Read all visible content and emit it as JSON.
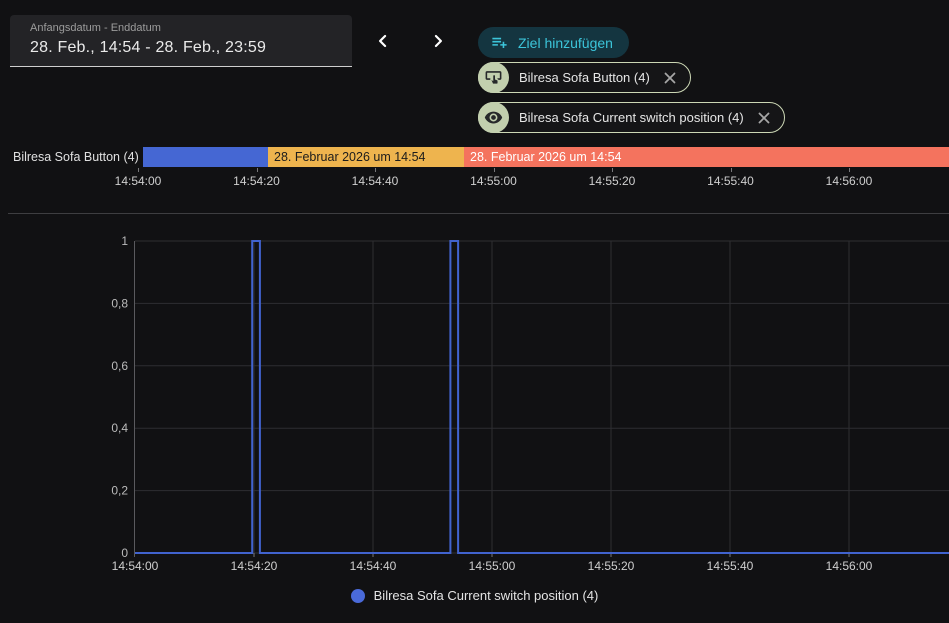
{
  "colors": {
    "page_bg": "#111113",
    "accent_cyan": "#3cc5da",
    "add_button_bg": "#143540",
    "chip_border": "#ccd7b5",
    "chip_avatar_bg": "#c2cfae",
    "segment_blue": "#4567d3",
    "segment_amber": "#eeb44e",
    "segment_red": "#f4735e",
    "line_blue": "#4163cf",
    "legend_dot": "#4a6ad9"
  },
  "date_range_picker": {
    "label": "Anfangsdatum - Enddatum",
    "value": "28. Feb., 14:54 - 28. Feb., 23:59"
  },
  "toolbar": {
    "add_target_label": "Ziel hinzufügen",
    "chips": [
      {
        "icon": "gesture-tap-button-icon",
        "label": "Bilresa Sofa Button (4)"
      },
      {
        "icon": "eye-icon",
        "label": "Bilresa Sofa Current switch position (4)"
      }
    ]
  },
  "timeline": {
    "entity_label": "Bilresa Sofa Button (4)",
    "segments": [
      {
        "label": "",
        "color_key": "segment_blue",
        "width_pct": 15.51,
        "text_color": "#ffffff"
      },
      {
        "label": "28. Februar 2026 um 14:54",
        "color_key": "segment_amber",
        "width_pct": 24.32,
        "text_color": "#1c1c1c"
      },
      {
        "label": "28. Februar 2026 um 14:54",
        "color_key": "segment_red",
        "width_pct": 60.17,
        "text_color": "#ffffff"
      }
    ],
    "axis_labels": [
      "14:54:00",
      "14:54:20",
      "14:54:40",
      "14:55:00",
      "14:55:20",
      "14:55:40",
      "14:56:00"
    ]
  },
  "chart_data": {
    "type": "line",
    "title": "",
    "xlabel": "",
    "ylabel": "",
    "x_unit": "seconds after 14:54:00",
    "x_range_seconds": [
      0,
      137
    ],
    "ylim": [
      0,
      1
    ],
    "grid": true,
    "legend_position": "bottom",
    "series": [
      {
        "name": "Bilresa Sofa Current switch position (4)",
        "step": true,
        "color_key": "line_blue",
        "points": [
          [
            0,
            0
          ],
          [
            19.7,
            0
          ],
          [
            19.7,
            1
          ],
          [
            21,
            1
          ],
          [
            21,
            0
          ],
          [
            53,
            0
          ],
          [
            53,
            1
          ],
          [
            54.3,
            1
          ],
          [
            54.3,
            0
          ],
          [
            137,
            0
          ]
        ]
      }
    ],
    "x_ticks": [
      {
        "t": 0,
        "label": "14:54:00"
      },
      {
        "t": 20,
        "label": "14:54:20"
      },
      {
        "t": 40,
        "label": "14:54:40"
      },
      {
        "t": 60,
        "label": "14:55:00"
      },
      {
        "t": 80,
        "label": "14:55:20"
      },
      {
        "t": 100,
        "label": "14:55:40"
      },
      {
        "t": 120,
        "label": "14:56:00"
      }
    ],
    "y_ticks": [
      {
        "v": 0,
        "label": "0"
      },
      {
        "v": 0.2,
        "label": "0,2"
      },
      {
        "v": 0.4,
        "label": "0,4"
      },
      {
        "v": 0.6,
        "label": "0,6"
      },
      {
        "v": 0.8,
        "label": "0,8"
      },
      {
        "v": 1,
        "label": "1"
      }
    ],
    "legend": [
      "Bilresa Sofa Current switch position (4)"
    ]
  }
}
